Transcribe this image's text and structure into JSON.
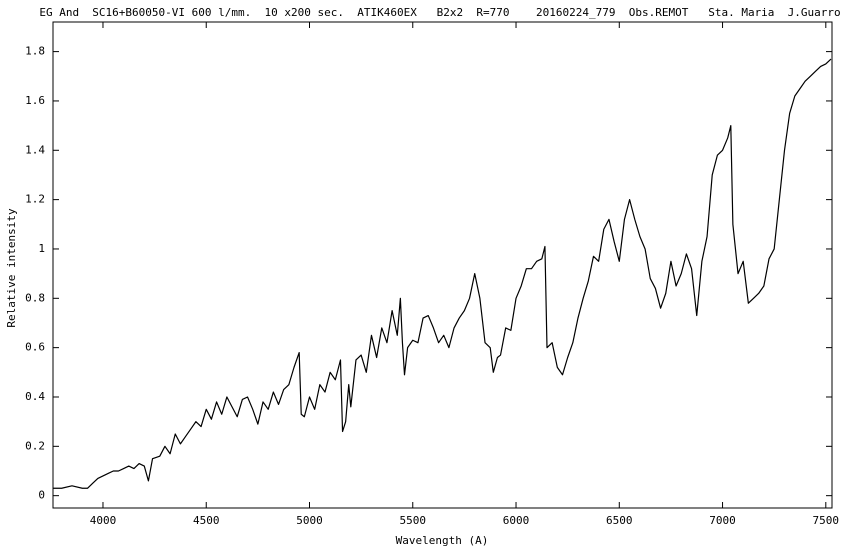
{
  "chart_data": {
    "type": "line",
    "title": "EG And  SC16+B60050-VI 600 l/mm.  10 x200 sec.  ATIK460EX   B2x2  R=770    20160224_779  Obs.REMOT   Sta. Maria  J.Guarro",
    "xlabel": "Wavelength (A)",
    "ylabel": "Relative intensity",
    "xlim": [
      3758,
      7530
    ],
    "ylim": [
      -0.05,
      1.92
    ],
    "xticks": [
      4000,
      4500,
      5000,
      5500,
      6000,
      6500,
      7000,
      7500
    ],
    "yticks": [
      0,
      0.2,
      0.4,
      0.6,
      0.8,
      1,
      1.2,
      1.4,
      1.6,
      1.8
    ],
    "color": "#000000",
    "x": [
      3760,
      3800,
      3850,
      3900,
      3925,
      3950,
      3975,
      4000,
      4025,
      4050,
      4075,
      4100,
      4125,
      4150,
      4175,
      4200,
      4220,
      4240,
      4275,
      4300,
      4325,
      4350,
      4375,
      4400,
      4425,
      4450,
      4475,
      4500,
      4525,
      4550,
      4575,
      4600,
      4625,
      4650,
      4675,
      4700,
      4725,
      4750,
      4775,
      4800,
      4825,
      4850,
      4875,
      4900,
      4925,
      4950,
      4960,
      4975,
      5000,
      5025,
      5050,
      5075,
      5100,
      5125,
      5150,
      5160,
      5175,
      5190,
      5200,
      5225,
      5250,
      5275,
      5300,
      5325,
      5350,
      5375,
      5400,
      5425,
      5440,
      5450,
      5460,
      5475,
      5500,
      5525,
      5550,
      5575,
      5600,
      5625,
      5650,
      5675,
      5700,
      5725,
      5750,
      5775,
      5800,
      5825,
      5850,
      5875,
      5890,
      5910,
      5925,
      5950,
      5975,
      6000,
      6025,
      6050,
      6075,
      6100,
      6125,
      6140,
      6150,
      6175,
      6200,
      6225,
      6250,
      6275,
      6300,
      6325,
      6350,
      6375,
      6400,
      6425,
      6450,
      6475,
      6500,
      6525,
      6550,
      6575,
      6600,
      6625,
      6650,
      6675,
      6700,
      6725,
      6750,
      6775,
      6800,
      6825,
      6850,
      6875,
      6900,
      6925,
      6950,
      6975,
      7000,
      7025,
      7040,
      7050,
      7075,
      7100,
      7125,
      7150,
      7175,
      7200,
      7225,
      7250,
      7275,
      7300,
      7325,
      7350,
      7375,
      7400,
      7425,
      7450,
      7475,
      7500,
      7525
    ],
    "values": [
      0.03,
      0.03,
      0.04,
      0.03,
      0.03,
      0.05,
      0.07,
      0.08,
      0.09,
      0.1,
      0.1,
      0.11,
      0.12,
      0.11,
      0.13,
      0.12,
      0.06,
      0.15,
      0.16,
      0.2,
      0.17,
      0.25,
      0.21,
      0.24,
      0.27,
      0.3,
      0.28,
      0.35,
      0.31,
      0.38,
      0.33,
      0.4,
      0.36,
      0.32,
      0.39,
      0.4,
      0.35,
      0.29,
      0.38,
      0.35,
      0.42,
      0.37,
      0.43,
      0.45,
      0.52,
      0.58,
      0.33,
      0.32,
      0.4,
      0.35,
      0.45,
      0.42,
      0.5,
      0.47,
      0.55,
      0.26,
      0.3,
      0.45,
      0.36,
      0.55,
      0.57,
      0.5,
      0.65,
      0.56,
      0.68,
      0.62,
      0.75,
      0.65,
      0.8,
      0.62,
      0.49,
      0.6,
      0.63,
      0.62,
      0.72,
      0.73,
      0.68,
      0.62,
      0.65,
      0.6,
      0.68,
      0.72,
      0.75,
      0.8,
      0.9,
      0.8,
      0.62,
      0.6,
      0.5,
      0.56,
      0.57,
      0.68,
      0.67,
      0.8,
      0.85,
      0.92,
      0.92,
      0.95,
      0.96,
      1.01,
      0.6,
      0.62,
      0.52,
      0.49,
      0.56,
      0.62,
      0.72,
      0.8,
      0.87,
      0.97,
      0.95,
      1.08,
      1.12,
      1.03,
      0.95,
      1.12,
      1.2,
      1.12,
      1.05,
      1.0,
      0.88,
      0.84,
      0.76,
      0.82,
      0.95,
      0.85,
      0.9,
      0.98,
      0.92,
      0.73,
      0.95,
      1.05,
      1.3,
      1.38,
      1.4,
      1.45,
      1.5,
      1.1,
      0.9,
      0.95,
      0.78,
      0.8,
      0.82,
      0.85,
      0.96,
      1.0,
      1.2,
      1.4,
      1.55,
      1.62,
      1.65,
      1.68,
      1.7,
      1.72,
      1.74,
      1.75,
      1.77
    ]
  }
}
